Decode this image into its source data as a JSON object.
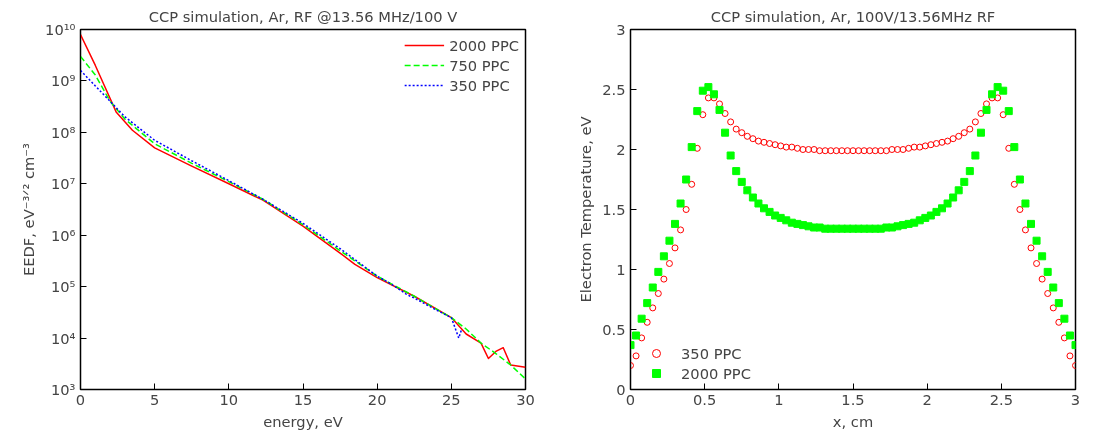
{
  "chart_data": [
    {
      "type": "line",
      "title": "CCP simulation, Ar, RF @13.56 MHz/100 V",
      "xlabel": "energy, eV",
      "ylabel": "EEDF, eV⁻³ᐟ² cm⁻³",
      "log": "y",
      "grid": false,
      "legend": "top right",
      "xlim": [
        0,
        30
      ],
      "xticks": [
        0,
        5,
        10,
        15,
        20,
        25,
        30
      ],
      "ylim": [
        1000,
        10000000000
      ],
      "yticks": [
        {
          "value": 1000,
          "label": "10³"
        },
        {
          "value": 10000,
          "label": "10⁴"
        },
        {
          "value": 100000,
          "label": "10⁵"
        },
        {
          "value": 1000000,
          "label": "10⁶"
        },
        {
          "value": 10000000,
          "label": "10⁷"
        },
        {
          "value": 100000000,
          "label": "10⁸"
        },
        {
          "value": 1000000000,
          "label": "10⁹"
        },
        {
          "value": 10000000000,
          "label": "10¹⁰"
        }
      ],
      "series": [
        {
          "name": "2000 PPC",
          "color": "#ff0000",
          "line_style": "solid",
          "x": [
            0,
            1,
            2.4,
            3.5,
            5,
            7.5,
            10,
            12.3,
            15,
            17.5,
            18.5,
            20,
            22.5,
            25,
            26,
            27,
            27.5,
            28,
            28.5,
            29,
            30
          ],
          "values": [
            8000000000,
            2000000000,
            250000000,
            110000000,
            50000000,
            22000000,
            10000000,
            4800000,
            1500000,
            450000,
            270000,
            150000,
            65000,
            25000,
            12000,
            8000,
            4000,
            5500,
            6500,
            3000,
            2700
          ]
        },
        {
          "name": "750 PPC",
          "color": "#00ff00",
          "line_style": "dashed",
          "x": [
            0,
            1,
            2,
            3,
            5,
            7.5,
            10,
            12.3,
            15,
            17.5,
            20,
            22.5,
            25,
            26,
            27,
            28,
            29,
            30
          ],
          "values": [
            3000000000,
            1300000000,
            400000000,
            180000000,
            60000000,
            25000000,
            11000000,
            5000000,
            1600000,
            500000,
            160000,
            65000,
            25000,
            15000,
            8000,
            5000,
            3000,
            1600
          ]
        },
        {
          "name": "350 PPC",
          "color": "#0000ff",
          "line_style": "dotted",
          "x": [
            0,
            1,
            2,
            3,
            5,
            7.5,
            10,
            12.3,
            15,
            17.5,
            20,
            21,
            22,
            22.5,
            24,
            25,
            25.5,
            25.7
          ],
          "values": [
            1600000000,
            800000000,
            400000000,
            200000000,
            70000000,
            28000000,
            11500000,
            5000000,
            1700000,
            550000,
            160000,
            110000,
            70000,
            60000,
            35000,
            25000,
            10000,
            15000
          ]
        }
      ]
    },
    {
      "type": "scatter",
      "title": "CCP simulation, Ar, 100V/13.56MHz RF",
      "xlabel": "x, cm",
      "ylabel": "Electron Temperature, eV",
      "grid": false,
      "legend": "bottom left",
      "xlim": [
        0,
        3
      ],
      "xticks": [
        0,
        0.5,
        1,
        1.5,
        2,
        2.5,
        3
      ],
      "ylim": [
        0,
        3
      ],
      "yticks": [
        0,
        0.5,
        1,
        1.5,
        2,
        2.5,
        3
      ],
      "x": [
        0,
        0.0375,
        0.075,
        0.1125,
        0.15,
        0.1875,
        0.225,
        0.2625,
        0.3,
        0.3375,
        0.375,
        0.4125,
        0.45,
        0.4875,
        0.525,
        0.5625,
        0.6,
        0.6375,
        0.675,
        0.7125,
        0.75,
        0.7875,
        0.825,
        0.8625,
        0.9,
        0.9375,
        0.975,
        1.0125,
        1.05,
        1.0875,
        1.125,
        1.1625,
        1.2,
        1.2375,
        1.275,
        1.3125,
        1.35,
        1.3875,
        1.425,
        1.4625,
        1.5,
        1.5375,
        1.575,
        1.6125,
        1.65,
        1.6875,
        1.725,
        1.7625,
        1.8,
        1.8375,
        1.875,
        1.9125,
        1.95,
        1.9875,
        2.025,
        2.0625,
        2.1,
        2.1375,
        2.175,
        2.2125,
        2.25,
        2.2875,
        2.325,
        2.3625,
        2.4,
        2.4375,
        2.475,
        2.5125,
        2.55,
        2.5875,
        2.625,
        2.6625,
        2.7,
        2.7375,
        2.775,
        2.8125,
        2.85,
        2.8875,
        2.925,
        2.9625,
        3
      ],
      "series": [
        {
          "name": "350 PPC",
          "color": "#ff0000",
          "marker": "circle",
          "values": [
            0.2,
            0.28,
            0.43,
            0.56,
            0.68,
            0.8,
            0.92,
            1.05,
            1.18,
            1.33,
            1.5,
            1.71,
            2.01,
            2.29,
            2.43,
            2.43,
            2.38,
            2.3,
            2.23,
            2.17,
            2.14,
            2.11,
            2.09,
            2.07,
            2.06,
            2.05,
            2.04,
            2.03,
            2.02,
            2.02,
            2.01,
            2.0,
            2.0,
            2.0,
            1.99,
            1.99,
            1.99,
            1.99,
            1.99,
            1.99,
            1.99,
            1.99,
            1.99,
            1.99,
            1.99,
            1.99,
            1.99,
            2.0,
            2.0,
            2.0,
            2.01,
            2.02,
            2.02,
            2.03,
            2.04,
            2.05,
            2.06,
            2.07,
            2.09,
            2.11,
            2.14,
            2.17,
            2.23,
            2.3,
            2.38,
            2.43,
            2.43,
            2.29,
            2.01,
            1.71,
            1.5,
            1.33,
            1.18,
            1.05,
            0.92,
            0.8,
            0.68,
            0.56,
            0.43,
            0.28,
            0.2
          ]
        },
        {
          "name": "2000 PPC",
          "color": "#00ff00",
          "marker": "square",
          "values": [
            0.37,
            0.45,
            0.59,
            0.72,
            0.85,
            0.98,
            1.11,
            1.24,
            1.38,
            1.55,
            1.75,
            2.02,
            2.32,
            2.49,
            2.52,
            2.46,
            2.33,
            2.14,
            1.95,
            1.82,
            1.73,
            1.66,
            1.6,
            1.55,
            1.51,
            1.48,
            1.45,
            1.43,
            1.41,
            1.39,
            1.38,
            1.37,
            1.36,
            1.35,
            1.35,
            1.34,
            1.34,
            1.34,
            1.34,
            1.34,
            1.34,
            1.34,
            1.34,
            1.34,
            1.34,
            1.34,
            1.35,
            1.35,
            1.36,
            1.37,
            1.38,
            1.39,
            1.41,
            1.43,
            1.45,
            1.48,
            1.51,
            1.55,
            1.6,
            1.66,
            1.73,
            1.82,
            1.95,
            2.14,
            2.33,
            2.46,
            2.52,
            2.49,
            2.32,
            2.02,
            1.75,
            1.55,
            1.38,
            1.24,
            1.11,
            0.98,
            0.85,
            0.72,
            0.59,
            0.45,
            0.37
          ]
        }
      ]
    }
  ]
}
